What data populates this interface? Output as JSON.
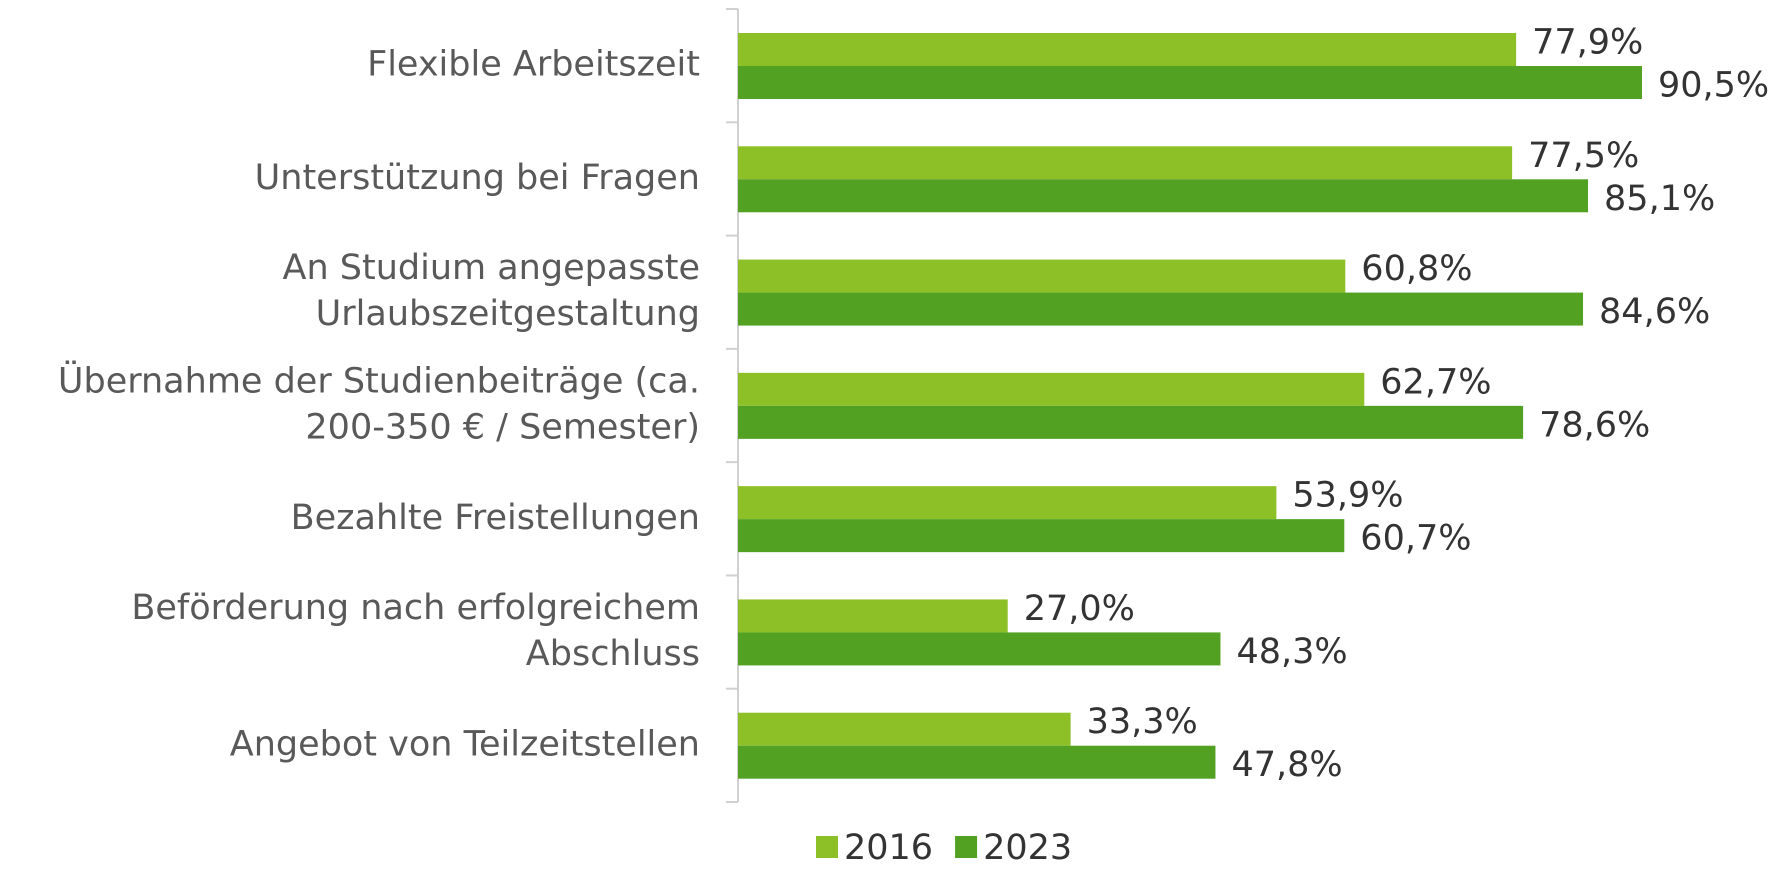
{
  "chart_data": {
    "type": "bar",
    "orientation": "horizontal",
    "categories": [
      [
        "Flexible Arbeitszeit"
      ],
      [
        "Unterstützung bei Fragen"
      ],
      [
        "An Studium angepasste",
        "Urlaubszeitgestaltung"
      ],
      [
        "Übernahme der Studienbeiträge (ca.",
        "200-350 € / Semester)"
      ],
      [
        "Bezahlte Freistellungen"
      ],
      [
        "Beförderung nach erfolgreichem",
        "Abschluss"
      ],
      [
        "Angebot von Teilzeitstellen"
      ]
    ],
    "series": [
      {
        "name": "2016",
        "color": "#8dc026",
        "values": [
          77.9,
          77.5,
          60.8,
          62.7,
          53.9,
          27.0,
          33.3
        ],
        "value_labels": [
          "77,9%",
          "77,5%",
          "60,8%",
          "62,7%",
          "53,9%",
          "27,0%",
          "33,3%"
        ]
      },
      {
        "name": "2023",
        "color": "#52a123",
        "values": [
          90.5,
          85.1,
          84.6,
          78.6,
          60.7,
          48.3,
          47.8
        ],
        "value_labels": [
          "90,5%",
          "85,1%",
          "84,6%",
          "78,6%",
          "60,7%",
          "48,3%",
          "47,8%"
        ]
      }
    ],
    "xlim": [
      0,
      100
    ],
    "legend": "bottom"
  }
}
